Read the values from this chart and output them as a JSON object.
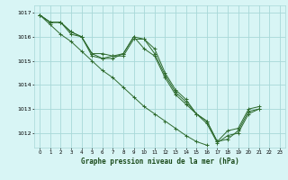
{
  "background_color": "#d8f5f5",
  "grid_color": "#a8d8d8",
  "line_color": "#2d6a2d",
  "marker_color": "#2d6a2d",
  "title": "Graphe pression niveau de la mer (hPa)",
  "xlim": [
    -0.5,
    23.5
  ],
  "ylim": [
    1011.4,
    1017.3
  ],
  "yticks": [
    1012,
    1013,
    1014,
    1015,
    1016,
    1017
  ],
  "xticks": [
    0,
    1,
    2,
    3,
    4,
    5,
    6,
    7,
    8,
    9,
    10,
    11,
    12,
    13,
    14,
    15,
    16,
    17,
    18,
    19,
    20,
    21,
    22,
    23
  ],
  "series": [
    [
      1016.9,
      1016.6,
      1016.6,
      1016.2,
      1016.0,
      1015.3,
      1015.1,
      1015.2,
      1015.2,
      1015.9,
      1015.9,
      1015.5,
      1014.5,
      1013.8,
      1013.4,
      1012.8,
      1012.5,
      1011.65,
      1011.75,
      1012.1,
      1012.9,
      1013.0,
      null,
      null
    ],
    [
      1016.9,
      1016.6,
      1016.6,
      1016.1,
      1016.0,
      1015.2,
      1015.1,
      1015.1,
      1015.3,
      1016.0,
      1015.9,
      1015.3,
      1014.4,
      1013.7,
      1013.3,
      1012.8,
      1012.5,
      1011.65,
      1012.1,
      1012.2,
      1013.0,
      1013.1,
      null,
      null
    ],
    [
      1016.9,
      1016.6,
      1016.6,
      1016.2,
      1016.0,
      1015.3,
      1015.3,
      1015.2,
      1015.3,
      1016.0,
      1015.5,
      1015.2,
      1014.3,
      1013.6,
      1013.2,
      1012.8,
      1012.4,
      1011.6,
      1011.9,
      1012.0,
      1012.8,
      1013.0,
      null,
      null
    ],
    [
      1016.9,
      1016.5,
      1016.1,
      1015.8,
      1015.4,
      1015.0,
      1014.6,
      1014.3,
      1013.9,
      1013.5,
      1013.1,
      1012.8,
      1012.5,
      1012.2,
      1011.9,
      1011.65,
      1011.5,
      null,
      null,
      null,
      null,
      null,
      null,
      null
    ]
  ]
}
